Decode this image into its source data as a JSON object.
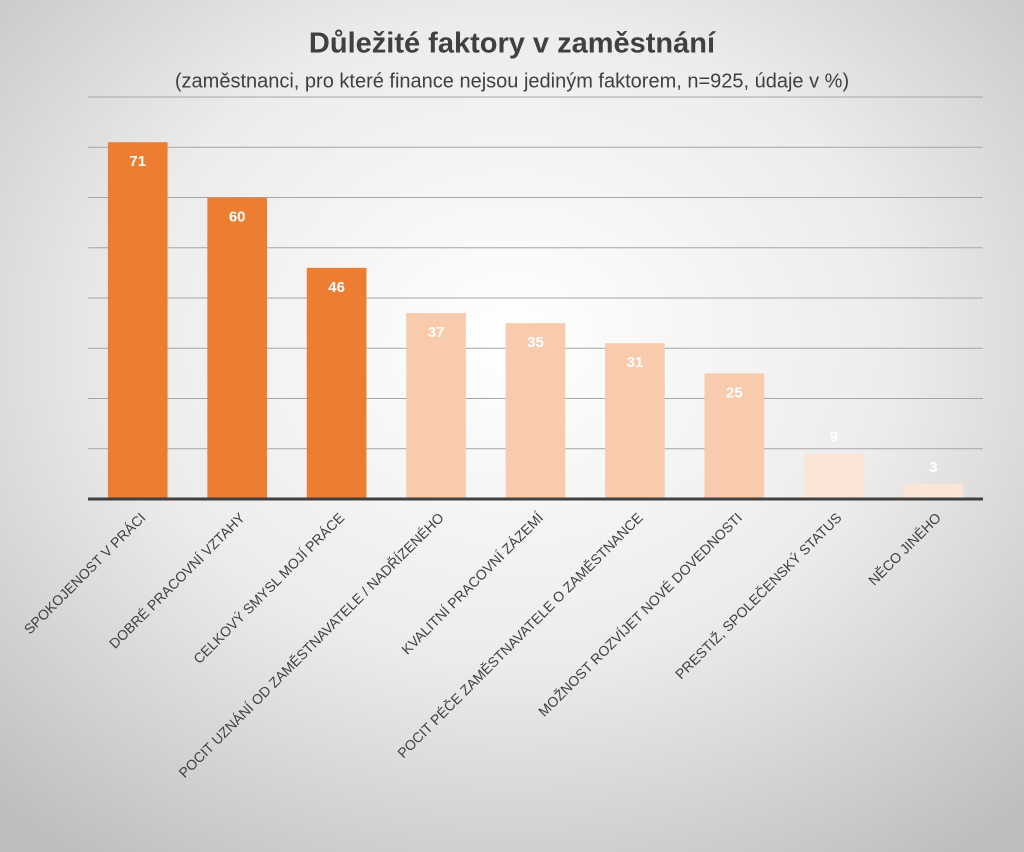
{
  "chart_data": {
    "type": "bar",
    "title": "Důležité faktory v zaměstnání",
    "subtitle": "(zaměstnanci, pro které finance nejsou jediným faktorem, n=925, údaje v %)",
    "categories": [
      "SPOKOJENOST V PRÁCI",
      "DOBRÉ PRACOVNÍ VZTAHY",
      "CELKOVÝ SMYSL MOJÍ PRÁCE",
      "POCIT UZNÁNÍ OD ZAMĚSTNAVATELE / NADŘÍZENÉHO",
      "KVALITNÍ PRACOVNÍ ZÁZEMÍ",
      "POCIT PÉČE ZAMĚSTNAVATELE O ZAMĚSTNANCE",
      "MOŽNOST ROZVÍJET NOVÉ DOVEDNOSTI",
      "PRESTIŽ, SPOLEČENSKÝ STATUS",
      "NĚCO JINÉHO"
    ],
    "values": [
      71,
      60,
      46,
      37,
      35,
      31,
      25,
      9,
      3
    ],
    "colors": [
      "#ed7d31",
      "#ed7d31",
      "#ed7d31",
      "#f8cbad",
      "#f8cbad",
      "#f8cbad",
      "#f8cbad",
      "#fbe5d6",
      "#fbe5d6"
    ],
    "ylim": [
      0,
      80
    ],
    "yticks": [
      0,
      10,
      20,
      30,
      40,
      50,
      60,
      70,
      80
    ],
    "grid": true
  }
}
